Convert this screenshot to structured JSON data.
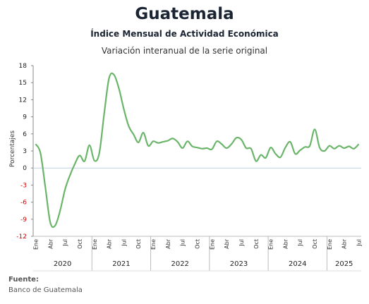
{
  "title": "Guatemala",
  "subtitle": "Índice Mensual de Actividad Económica",
  "subtitle2": "Variación interanual de la serie original",
  "source": {
    "label": "Fuente:",
    "text": "Banco de Guatemala"
  },
  "colors": {
    "line": "#6ab56a",
    "zero_line": "#b9d3e6",
    "negative_tick": "#d00000",
    "positive_tick": "#222222"
  },
  "chart_data": {
    "type": "line",
    "title": "Índice Mensual de Actividad Económica",
    "subtitle": "Variación interanual de la serie original",
    "xlabel": "",
    "ylabel": "Porcentajes",
    "ylim": [
      -12,
      18
    ],
    "yticks": [
      18,
      15,
      12,
      9,
      6,
      3,
      0,
      -3,
      -6,
      -9,
      -12
    ],
    "grid": false,
    "month_tick_labels": [
      "Ene",
      "Abr",
      "Jul",
      "Oct"
    ],
    "years": [
      "2020",
      "2021",
      "2022",
      "2023",
      "2024",
      "2025"
    ],
    "x": [
      "2020-01",
      "2020-02",
      "2020-03",
      "2020-04",
      "2020-05",
      "2020-06",
      "2020-07",
      "2020-08",
      "2020-09",
      "2020-10",
      "2020-11",
      "2020-12",
      "2021-01",
      "2021-02",
      "2021-03",
      "2021-04",
      "2021-05",
      "2021-06",
      "2021-07",
      "2021-08",
      "2021-09",
      "2021-10",
      "2021-11",
      "2021-12",
      "2022-01",
      "2022-02",
      "2022-03",
      "2022-04",
      "2022-05",
      "2022-06",
      "2022-07",
      "2022-08",
      "2022-09",
      "2022-10",
      "2022-11",
      "2022-12",
      "2023-01",
      "2023-02",
      "2023-03",
      "2023-04",
      "2023-05",
      "2023-06",
      "2023-07",
      "2023-08",
      "2023-09",
      "2023-10",
      "2023-11",
      "2023-12",
      "2024-01",
      "2024-02",
      "2024-03",
      "2024-04",
      "2024-05",
      "2024-06",
      "2024-07",
      "2024-08",
      "2024-09",
      "2024-10",
      "2024-11",
      "2024-12",
      "2025-01",
      "2025-02",
      "2025-03",
      "2025-04",
      "2025-05",
      "2025-06",
      "2025-07"
    ],
    "series": [
      {
        "values": [
          4.2,
          2.6,
          -3.5,
          -9.6,
          -10.1,
          -7.5,
          -3.8,
          -1.3,
          0.7,
          2.2,
          1.2,
          4.0,
          1.3,
          2.6,
          9.5,
          15.8,
          16.4,
          14.0,
          10.4,
          7.4,
          5.9,
          4.5,
          6.2,
          3.9,
          4.7,
          4.4,
          4.6,
          4.8,
          5.2,
          4.6,
          3.5,
          4.7,
          3.8,
          3.6,
          3.4,
          3.5,
          3.3,
          4.7,
          4.2,
          3.5,
          4.2,
          5.3,
          5.0,
          3.5,
          3.4,
          1.2,
          2.3,
          1.8,
          3.6,
          2.5,
          1.9,
          3.6,
          4.6,
          2.5,
          3.1,
          3.7,
          3.9,
          6.8,
          3.6,
          3.0,
          3.9,
          3.4,
          3.9,
          3.5,
          3.8,
          3.4,
          4.2
        ]
      }
    ]
  }
}
